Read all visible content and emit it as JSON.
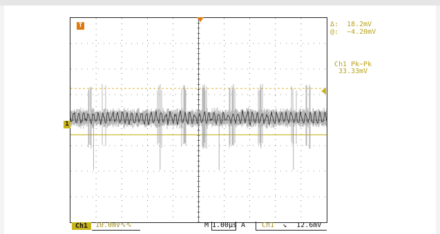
{
  "colors": {
    "background": "#ffffff",
    "grid": "#222222",
    "trace": "#2a2a2a",
    "trace_envelope": "#9a9a9a",
    "ch1_accent": "#c7b31a",
    "readout_text": "#b9a218",
    "trigger_marker": "#e07a10",
    "t_marker": "#e07a10",
    "cursor_line_dashed": "#e0b030",
    "cursor_line_solid": "#c7b31a"
  },
  "screen": {
    "t_marker_label": "T",
    "ch1_marker_label": "1",
    "trigger_marker_icon": "arrow-down-icon",
    "level_marker_icon": "arrow-left-icon"
  },
  "readouts": {
    "delta": "Δ:  18.2mV",
    "at": "@:  −4.20mV",
    "measurement_name": "Ch1 Pk−Pk",
    "measurement_value": "33.33mV"
  },
  "status_bar": {
    "channel": "Ch1",
    "scale": "10.0mV",
    "scale_suffix": "∿∿",
    "timebase_prefix": "M",
    "timebase": "1.00μs",
    "acq_prefix": "A",
    "trigger_source": "Ch1",
    "trigger_slope_icon": "falling-edge-icon",
    "trigger_slope_glyph": "↘",
    "trigger_level": "12.6mV"
  }
}
